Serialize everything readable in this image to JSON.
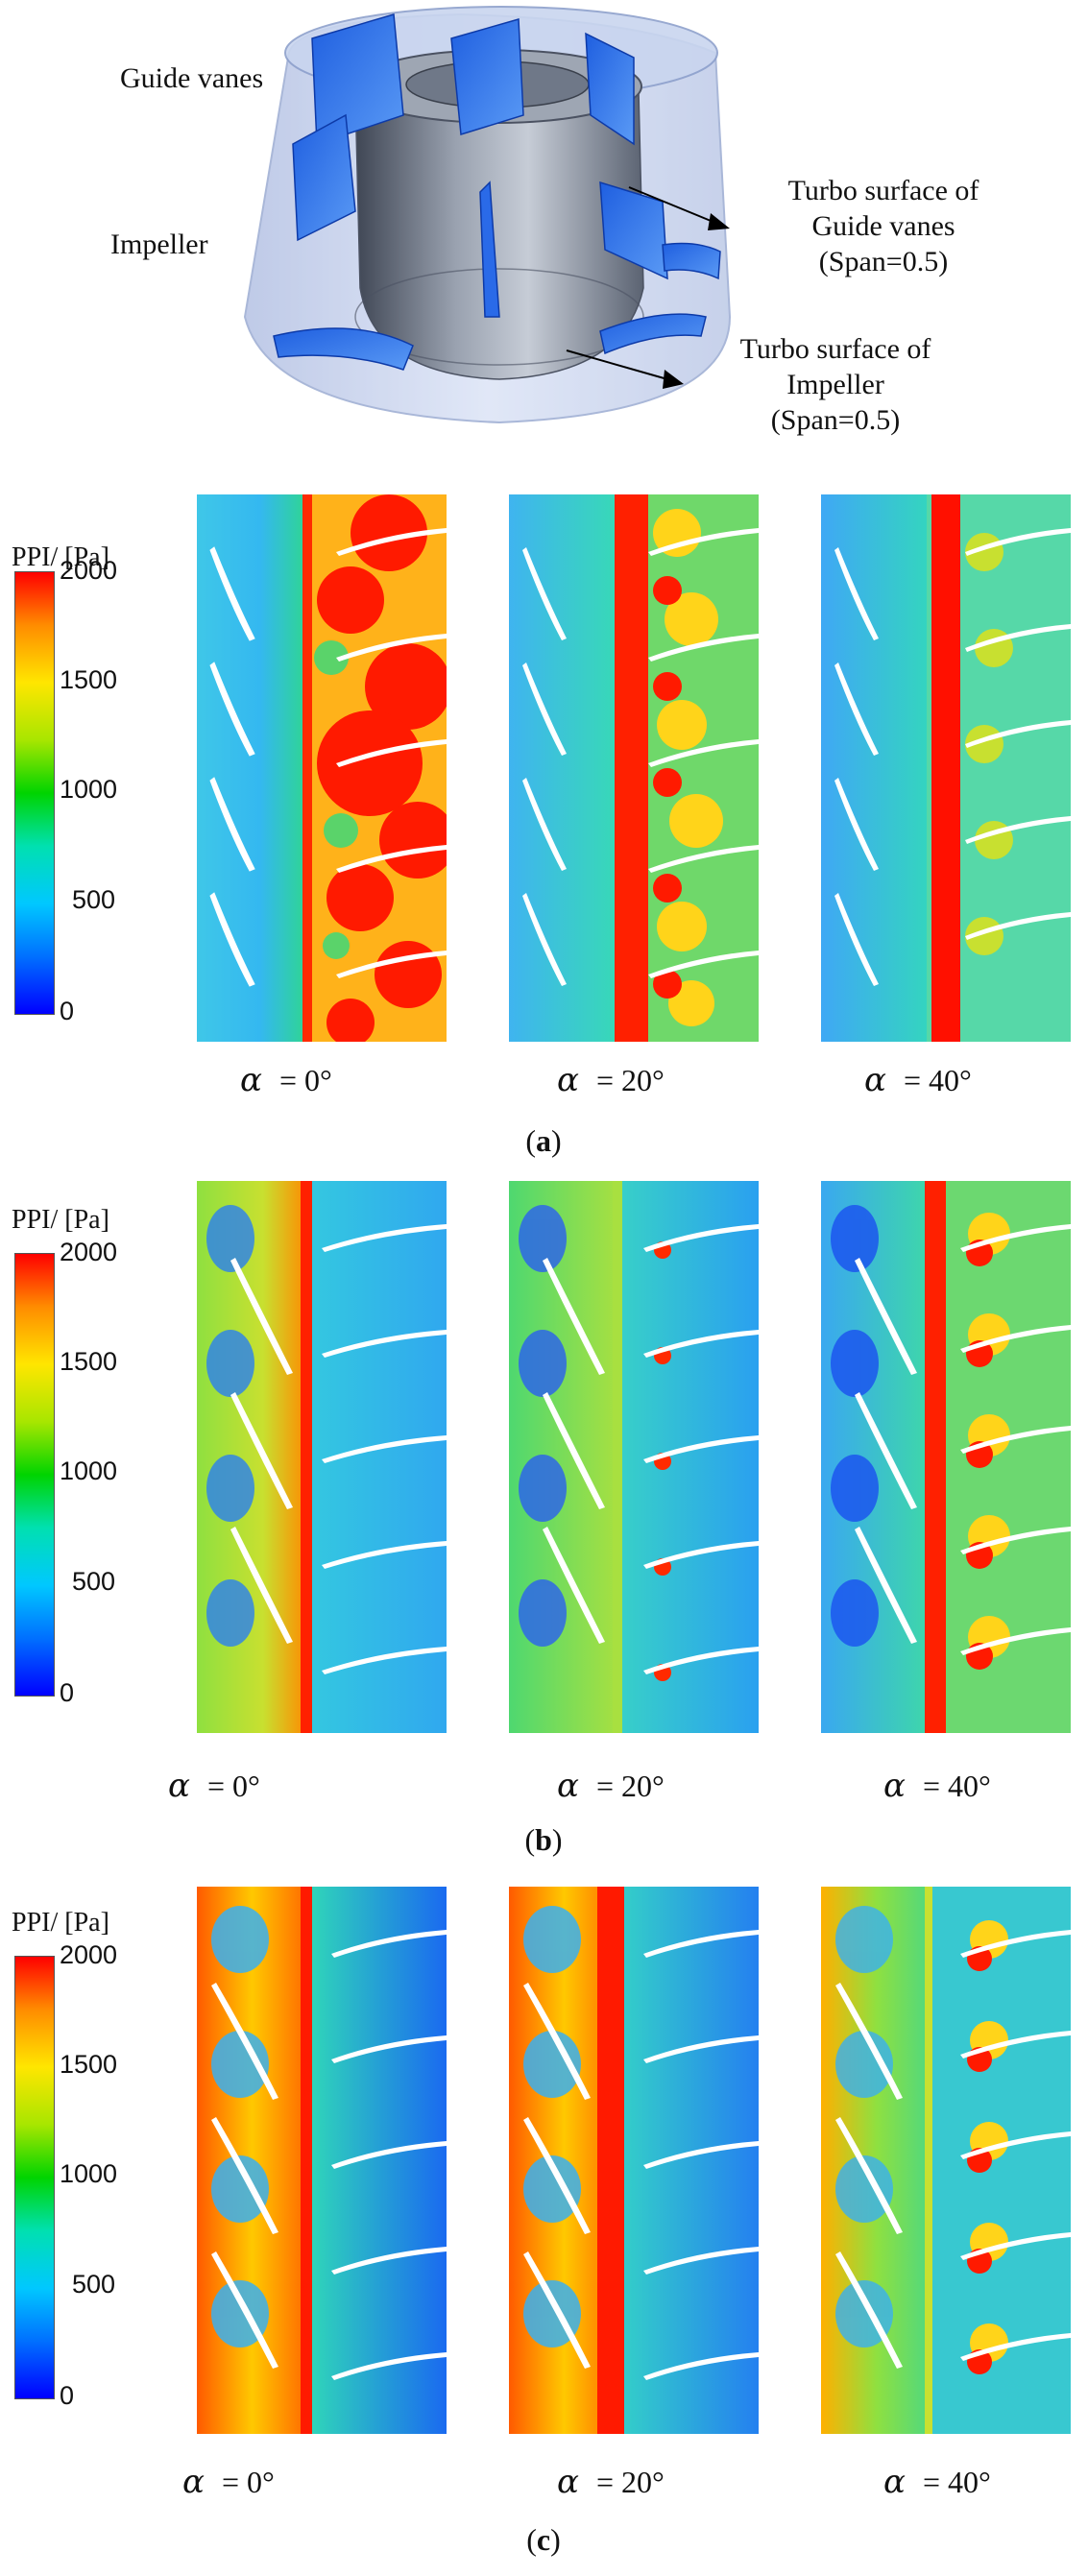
{
  "diagram": {
    "guide_vanes_label": "Guide vanes",
    "impeller_label": "Impeller",
    "turbo_gv": [
      "Turbo surface of",
      "Guide vanes",
      "(Span=0.5)"
    ],
    "turbo_imp": [
      "Turbo surface of",
      "Impeller",
      "(Span=0.5)"
    ]
  },
  "colorbar": {
    "title": "PPI/ [Pa]",
    "ticks": [
      "2000",
      "1500",
      "1000",
      "500",
      "0"
    ],
    "range": [
      0,
      2000
    ],
    "colors": [
      "#ff0000",
      "#ff8c00",
      "#ffe600",
      "#00d400",
      "#00c8ff",
      "#0000ff"
    ]
  },
  "alpha_symbol": "α",
  "panels": [
    {
      "id": "a",
      "angles": [
        "= 0°",
        "= 20°",
        "= 40°"
      ]
    },
    {
      "id": "b",
      "angles": [
        "= 0°",
        "= 20°",
        "= 40°"
      ]
    },
    {
      "id": "c",
      "angles": [
        "= 0°",
        "= 20°",
        "= 40°"
      ]
    }
  ]
}
